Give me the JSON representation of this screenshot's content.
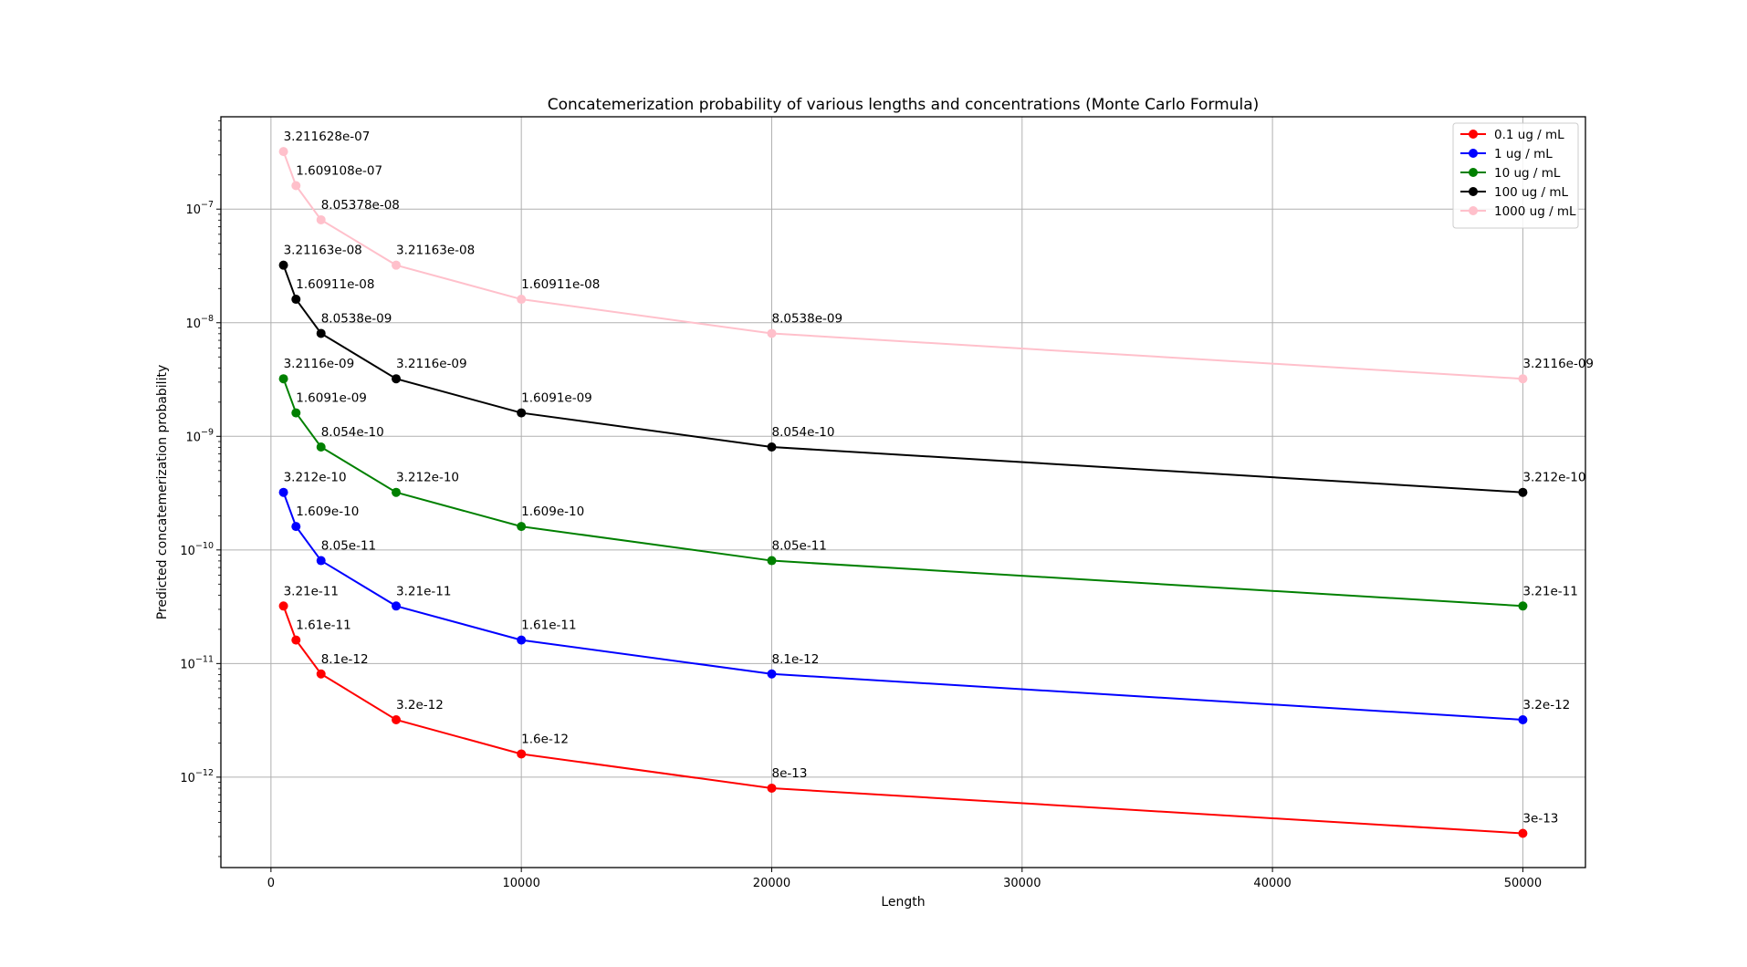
{
  "chart_data": {
    "type": "line",
    "title": "Concatemerization probability of various lengths and concentrations (Monte Carlo Formula)",
    "xlabel": "Length",
    "ylabel": "Predicted concatemerization probability",
    "x": [
      500,
      1000,
      2000,
      5000,
      10000,
      20000,
      50000
    ],
    "xlim": [
      -2000,
      52500
    ],
    "xticks": [
      0,
      10000,
      20000,
      30000,
      40000,
      50000
    ],
    "xtick_labels": [
      "0",
      "10000",
      "20000",
      "30000",
      "40000",
      "50000"
    ],
    "yscale": "log",
    "ylim": [
      1.6e-13,
      6.5e-07
    ],
    "yticks_exp": [
      -12,
      -11,
      -10,
      -9,
      -8,
      -7
    ],
    "ytick_base": "10",
    "grid": true,
    "legend_position": "top-right",
    "series": [
      {
        "name": "0.1 ug / mL",
        "color": "#ff0000",
        "values": [
          3.21e-11,
          1.61e-11,
          8.1e-12,
          3.2e-12,
          1.6e-12,
          8e-13,
          3.2e-13
        ],
        "labels": [
          "3.21e-11",
          "1.61e-11",
          "8.1e-12",
          "3.2e-12",
          "1.6e-12",
          "8e-13",
          "3e-13"
        ]
      },
      {
        "name": "1 ug / mL",
        "color": "#0000ff",
        "values": [
          3.212e-10,
          1.609e-10,
          8.05e-11,
          3.21e-11,
          1.61e-11,
          8.1e-12,
          3.2e-12
        ],
        "labels": [
          "3.212e-10",
          "1.609e-10",
          "8.05e-11",
          "3.21e-11",
          "1.61e-11",
          "8.1e-12",
          "3.2e-12"
        ]
      },
      {
        "name": "10 ug / mL",
        "color": "#008000",
        "values": [
          3.2116e-09,
          1.6091e-09,
          8.054e-10,
          3.212e-10,
          1.609e-10,
          8.05e-11,
          3.21e-11
        ],
        "labels": [
          "3.2116e-09",
          "1.6091e-09",
          "8.054e-10",
          "3.212e-10",
          "1.609e-10",
          "8.05e-11",
          "3.21e-11"
        ]
      },
      {
        "name": "100 ug / mL",
        "color": "#000000",
        "values": [
          3.21163e-08,
          1.60911e-08,
          8.0538e-09,
          3.2116e-09,
          1.6091e-09,
          8.054e-10,
          3.212e-10
        ],
        "labels": [
          "3.21163e-08",
          "1.60911e-08",
          "8.0538e-09",
          "3.2116e-09",
          "1.6091e-09",
          "8.054e-10",
          "3.212e-10"
        ]
      },
      {
        "name": "1000 ug / mL",
        "color": "#ffc0cb",
        "values": [
          3.211628e-07,
          1.609108e-07,
          8.05378e-08,
          3.21163e-08,
          1.60911e-08,
          8.0538e-09,
          3.2116e-09
        ],
        "labels": [
          "3.211628e-07",
          "1.609108e-07",
          "8.05378e-08",
          "3.21163e-08",
          "1.60911e-08",
          "8.0538e-09",
          "3.2116e-09"
        ]
      }
    ]
  }
}
